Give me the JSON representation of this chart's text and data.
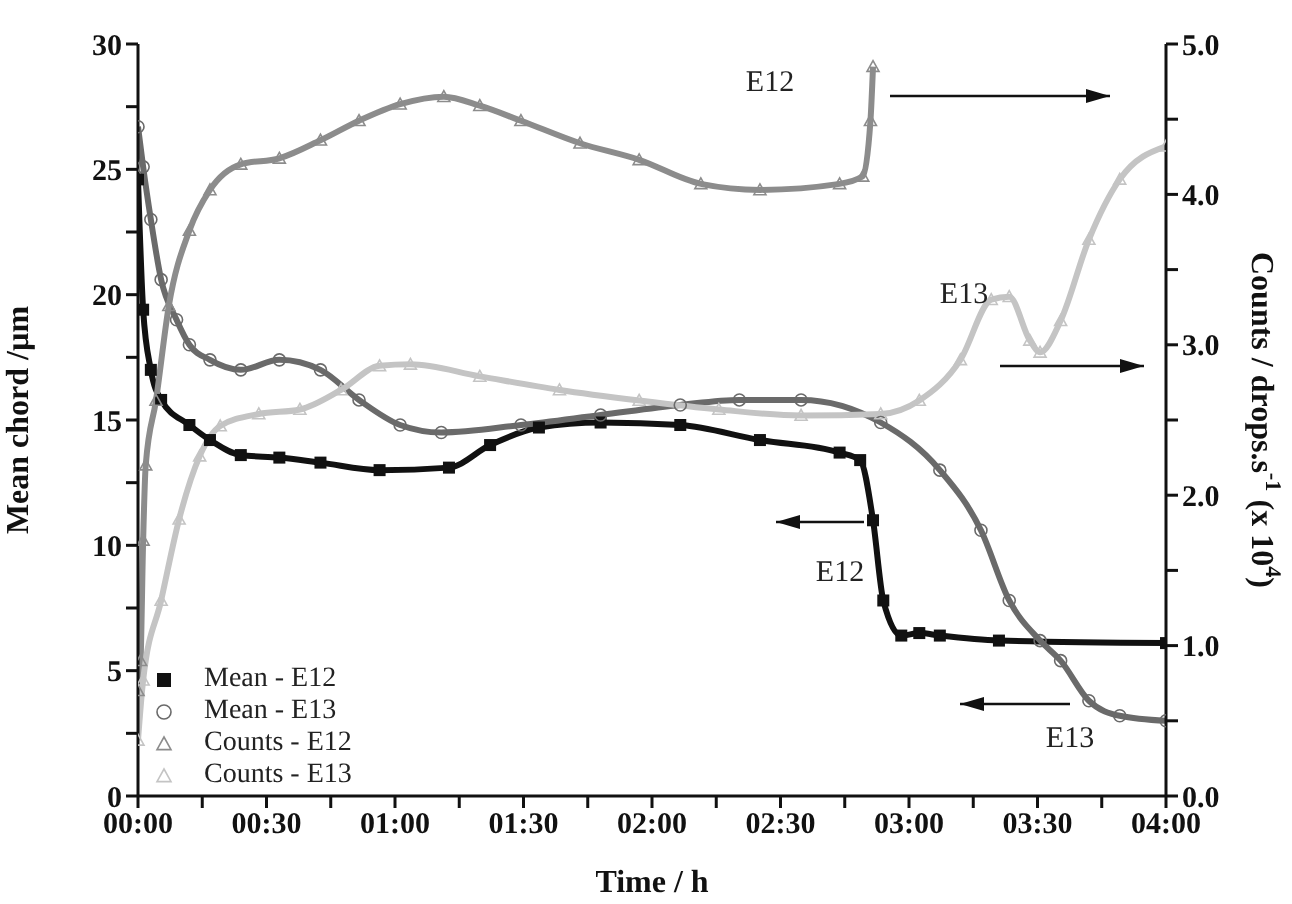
{
  "chart_data": {
    "type": "line",
    "xlabel": "Time / h",
    "ylabel": "Mean chord /µm",
    "y2label": "Counts / drops.s$^{-1}$ (x 10$^{4}$)",
    "xlim": [
      0,
      4
    ],
    "xticks": [
      {
        "value": 0,
        "label": "00:00"
      },
      {
        "value": 0.25,
        "label": null
      },
      {
        "value": 0.5,
        "label": "00:30"
      },
      {
        "value": 0.75,
        "label": null
      },
      {
        "value": 1,
        "label": "01:00"
      },
      {
        "value": 1.25,
        "label": null
      },
      {
        "value": 1.5,
        "label": "01:30"
      },
      {
        "value": 1.75,
        "label": null
      },
      {
        "value": 2,
        "label": "02:00"
      },
      {
        "value": 2.25,
        "label": null
      },
      {
        "value": 2.5,
        "label": "02:30"
      },
      {
        "value": 2.75,
        "label": null
      },
      {
        "value": 3,
        "label": "03:00"
      },
      {
        "value": 3.25,
        "label": null
      },
      {
        "value": 3.5,
        "label": "03:30"
      },
      {
        "value": 3.75,
        "label": null
      },
      {
        "value": 4,
        "label": "04:00"
      }
    ],
    "ylim": [
      0,
      30
    ],
    "yticks": [
      0,
      {
        "value": 2.5,
        "label": null
      },
      5,
      {
        "value": 7.5,
        "label": null
      },
      10,
      {
        "value": 12.5,
        "label": null
      },
      15,
      {
        "value": 17.5,
        "label": null
      },
      20,
      {
        "value": 22.5,
        "label": null
      },
      25,
      {
        "value": 27.5,
        "label": null
      },
      30
    ],
    "y2lim": [
      0,
      5
    ],
    "y2ticks": [
      {
        "value": 0,
        "label": "0.0"
      },
      {
        "value": 0.5,
        "label": null
      },
      {
        "value": 1,
        "label": "1.0"
      },
      {
        "value": 1.5,
        "label": null
      },
      {
        "value": 2,
        "label": "2.0"
      },
      {
        "value": 2.5,
        "label": null
      },
      {
        "value": 3,
        "label": "3.0"
      },
      {
        "value": 3.5,
        "label": null
      },
      {
        "value": 4,
        "label": "4.0"
      },
      {
        "value": 4.5,
        "label": null
      },
      {
        "value": 5,
        "label": "5.0"
      }
    ],
    "legend": "bottom left",
    "series": [
      {
        "name": "Mean - E12",
        "color": "#111111",
        "marker": "square",
        "x": [
          0,
          0.02,
          0.05,
          0.09,
          0.2,
          0.28,
          0.4,
          0.55,
          0.71,
          0.94,
          1.21,
          1.37,
          1.56,
          1.8,
          2.11,
          2.42,
          2.73,
          2.81,
          2.86,
          2.9,
          2.97,
          3.04,
          3.12,
          3.35,
          4.0
        ],
        "values": [
          24.6,
          19.4,
          17,
          15.8,
          14.8,
          14.2,
          13.6,
          13.5,
          13.3,
          13.0,
          13.1,
          14.0,
          14.7,
          14.9,
          14.8,
          14.2,
          13.7,
          13.4,
          11.0,
          7.8,
          6.4,
          6.5,
          6.4,
          6.2,
          6.1
        ]
      },
      {
        "name": "Mean - E13",
        "color": "#6a6a6a",
        "marker": "circle",
        "x": [
          0,
          0.02,
          0.05,
          0.09,
          0.15,
          0.2,
          0.28,
          0.4,
          0.55,
          0.71,
          0.86,
          1.02,
          1.18,
          1.49,
          1.8,
          2.11,
          2.34,
          2.58,
          2.89,
          3.12,
          3.28,
          3.39,
          3.51,
          3.59,
          3.7,
          3.82,
          4.0
        ],
        "values": [
          26.7,
          25.1,
          23,
          20.6,
          19,
          18,
          17.4,
          17.0,
          17.4,
          17.0,
          15.8,
          14.8,
          14.5,
          14.8,
          15.2,
          15.6,
          15.8,
          15.8,
          14.9,
          13.0,
          10.6,
          7.8,
          6.2,
          5.4,
          3.8,
          3.2,
          3.0
        ]
      },
      {
        "name": "Counts - E12",
        "color": "#8c8c8c",
        "marker": "triangle",
        "axis": "y2",
        "x": [
          0,
          0.01,
          0.02,
          0.03,
          0.07,
          0.12,
          0.2,
          0.28,
          0.4,
          0.55,
          0.71,
          0.86,
          1.02,
          1.19,
          1.33,
          1.49,
          1.72,
          1.95,
          2.19,
          2.42,
          2.73,
          2.82,
          2.85,
          2.86
        ],
        "values": [
          0.7,
          0.9,
          1.7,
          2.2,
          2.63,
          3.26,
          3.76,
          4.03,
          4.2,
          4.24,
          4.36,
          4.49,
          4.6,
          4.65,
          4.59,
          4.49,
          4.34,
          4.23,
          4.07,
          4.03,
          4.07,
          4.12,
          4.49,
          4.85
        ]
      },
      {
        "name": "Counts - E13",
        "color": "#c4c4c4",
        "marker": "triangle",
        "axis": "y2",
        "x": [
          0,
          0.02,
          0.09,
          0.16,
          0.24,
          0.32,
          0.47,
          0.63,
          0.79,
          0.94,
          1.06,
          1.33,
          1.64,
          1.95,
          2.26,
          2.58,
          2.89,
          3.04,
          3.2,
          3.32,
          3.39,
          3.47,
          3.51,
          3.59,
          3.7,
          3.82,
          4.0
        ],
        "values": [
          0.37,
          0.77,
          1.3,
          1.84,
          2.26,
          2.46,
          2.54,
          2.57,
          2.7,
          2.86,
          2.87,
          2.79,
          2.7,
          2.63,
          2.57,
          2.53,
          2.54,
          2.63,
          2.9,
          3.3,
          3.32,
          3.03,
          2.95,
          3.16,
          3.7,
          4.1,
          4.32
        ]
      }
    ],
    "annotations": [
      "E12",
      "E13",
      "E12",
      "E13"
    ]
  }
}
